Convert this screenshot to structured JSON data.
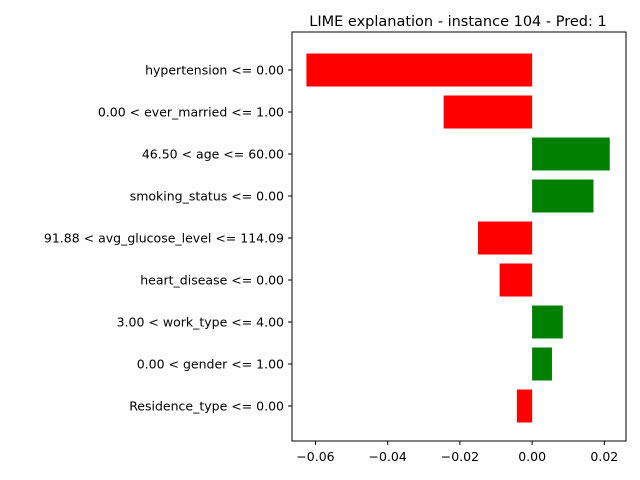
{
  "chart_data": {
    "type": "bar",
    "orientation": "horizontal",
    "title": "LIME explanation - instance 104 - Pred: 1",
    "xlabel": "",
    "ylabel": "",
    "categories": [
      "hypertension <= 0.00",
      "0.00 < ever_married <= 1.00",
      "46.50 < age <= 60.00",
      "smoking_status <= 0.00",
      "91.88 < avg_glucose_level <= 114.09",
      "heart_disease <= 0.00",
      "3.00 < work_type <= 4.00",
      "0.00 < gender <= 1.00",
      "Residence_type <= 0.00"
    ],
    "values": [
      -0.0625,
      -0.0245,
      0.0215,
      0.017,
      -0.015,
      -0.009,
      0.0085,
      0.0055,
      -0.0042
    ],
    "xlim": [
      -0.0665,
      0.026
    ],
    "xticks": [
      -0.06,
      -0.04,
      -0.02,
      0.0,
      0.02
    ],
    "xtick_labels": [
      "−0.06",
      "−0.04",
      "−0.02",
      "0.00",
      "0.02"
    ],
    "grid": false,
    "legend": "none",
    "colors": {
      "positive": "#008000",
      "negative": "#ff0000",
      "axis": "#000000"
    }
  }
}
